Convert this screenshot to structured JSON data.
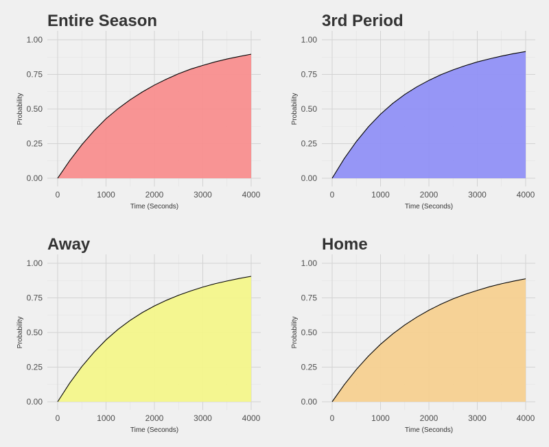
{
  "chart_data": [
    {
      "type": "area",
      "title": "Entire Season",
      "xlabel": "Time (Seconds)",
      "ylabel": "Probability",
      "xlim": [
        0,
        4000
      ],
      "ylim": [
        0,
        1
      ],
      "x_ticks": [
        "0",
        "1000",
        "2000",
        "3000",
        "4000"
      ],
      "y_ticks": [
        "0.00",
        "0.25",
        "0.50",
        "0.75",
        "1.00"
      ],
      "fill_color": "#f88e8e",
      "x": [
        0,
        250,
        500,
        750,
        1000,
        1250,
        1500,
        1750,
        2000,
        2250,
        2500,
        2750,
        3000,
        3250,
        3500,
        3750,
        4000
      ],
      "y": [
        0,
        0.128,
        0.242,
        0.342,
        0.43,
        0.503,
        0.567,
        0.623,
        0.673,
        0.716,
        0.755,
        0.788,
        0.815,
        0.84,
        0.861,
        0.879,
        0.896
      ],
      "grid": true
    },
    {
      "type": "area",
      "title": "3rd Period",
      "xlabel": "Time (Seconds)",
      "ylabel": "Probability",
      "xlim": [
        0,
        4000
      ],
      "ylim": [
        0,
        1
      ],
      "x_ticks": [
        "0",
        "1000",
        "2000",
        "3000",
        "4000"
      ],
      "y_ticks": [
        "0.00",
        "0.25",
        "0.50",
        "0.75",
        "1.00"
      ],
      "fill_color": "#9090f5",
      "x": [
        0,
        250,
        500,
        750,
        1000,
        1250,
        1500,
        1750,
        2000,
        2250,
        2500,
        2750,
        3000,
        3250,
        3500,
        3750,
        4000
      ],
      "y": [
        0,
        0.142,
        0.265,
        0.372,
        0.463,
        0.54,
        0.605,
        0.66,
        0.707,
        0.748,
        0.783,
        0.813,
        0.84,
        0.862,
        0.882,
        0.9,
        0.915
      ],
      "grid": true
    },
    {
      "type": "area",
      "title": "Away",
      "xlabel": "Time (Seconds)",
      "ylabel": "Probability",
      "xlim": [
        0,
        4000
      ],
      "ylim": [
        0,
        1
      ],
      "x_ticks": [
        "0",
        "1000",
        "2000",
        "3000",
        "4000"
      ],
      "y_ticks": [
        "0.00",
        "0.25",
        "0.50",
        "0.75",
        "1.00"
      ],
      "fill_color": "#f3f58a",
      "x": [
        0,
        250,
        500,
        750,
        1000,
        1250,
        1500,
        1750,
        2000,
        2250,
        2500,
        2750,
        3000,
        3250,
        3500,
        3750,
        4000
      ],
      "y": [
        0,
        0.135,
        0.254,
        0.357,
        0.447,
        0.523,
        0.588,
        0.644,
        0.692,
        0.733,
        0.769,
        0.8,
        0.828,
        0.852,
        0.872,
        0.89,
        0.906
      ],
      "grid": true
    },
    {
      "type": "area",
      "title": "Home",
      "xlabel": "Time (Seconds)",
      "ylabel": "Probability",
      "xlim": [
        0,
        4000
      ],
      "ylim": [
        0,
        1
      ],
      "x_ticks": [
        "0",
        "1000",
        "2000",
        "3000",
        "4000"
      ],
      "y_ticks": [
        "0.00",
        "0.25",
        "0.50",
        "0.75",
        "1.00"
      ],
      "fill_color": "#f5d090",
      "x": [
        0,
        250,
        500,
        750,
        1000,
        1250,
        1500,
        1750,
        2000,
        2250,
        2500,
        2750,
        3000,
        3250,
        3500,
        3750,
        4000
      ],
      "y": [
        0,
        0.123,
        0.233,
        0.33,
        0.415,
        0.489,
        0.554,
        0.611,
        0.661,
        0.705,
        0.743,
        0.776,
        0.804,
        0.83,
        0.852,
        0.871,
        0.888
      ],
      "grid": true
    }
  ]
}
